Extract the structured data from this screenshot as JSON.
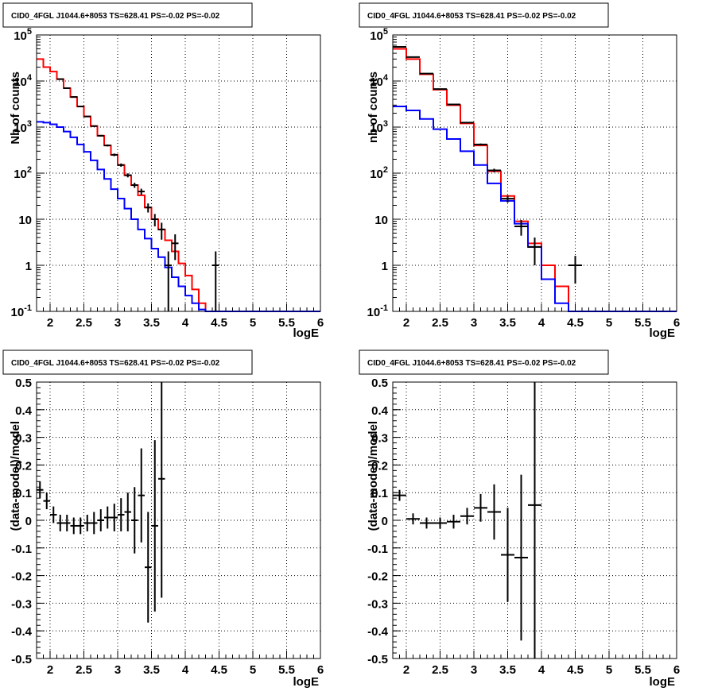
{
  "chart_data": [
    {
      "type": "line",
      "title": "CID0_4FGL J1044.6+8053 TS=628.41 PS=-0.02 PS=-0.02",
      "xlabel": "logE",
      "ylabel": "Nb of counts",
      "xlim": [
        1.8,
        6
      ],
      "ylim": [
        0.1,
        100000
      ],
      "yscale": "log",
      "grid": true,
      "x_ticks": [
        "2",
        "2.5",
        "3",
        "3.5",
        "4",
        "4.5",
        "5",
        "5.5",
        "6"
      ],
      "y_ticks": [
        "10^-1",
        "1",
        "10",
        "10^2",
        "10^3",
        "10^4",
        "10^5"
      ],
      "series": [
        {
          "color": "#ff0000",
          "style": "step",
          "bin_edges": [
            1.8,
            1.9,
            2.0,
            2.1,
            2.2,
            2.3,
            2.4,
            2.5,
            2.6,
            2.7,
            2.8,
            2.9,
            3.0,
            3.1,
            3.2,
            3.3,
            3.4,
            3.5,
            3.6,
            3.7,
            3.8,
            3.9,
            4.0,
            4.1,
            4.2,
            4.3,
            4.4,
            4.5,
            4.6,
            4.7,
            4.8,
            4.9,
            5.0,
            5.1,
            5.2,
            5.3,
            5.4,
            5.5,
            5.6,
            5.7,
            5.8,
            5.9,
            6.0
          ],
          "values": [
            30000,
            20000,
            16000,
            11000,
            7000,
            4500,
            2800,
            1700,
            1050,
            650,
            400,
            250,
            150,
            90,
            55,
            33,
            18,
            10,
            6,
            3.5,
            2,
            1.1,
            0.6,
            0.3,
            0.15,
            0.1,
            0.1,
            0.1,
            0.1,
            0.1,
            0.1,
            0.1,
            0.1,
            0.1,
            0.1,
            0.1,
            0.1,
            0.1,
            0.1,
            0.1,
            0.1,
            0.1
          ]
        },
        {
          "color": "#0000ff",
          "style": "step",
          "bin_edges": [
            1.8,
            1.9,
            2.0,
            2.1,
            2.2,
            2.3,
            2.4,
            2.5,
            2.6,
            2.7,
            2.8,
            2.9,
            3.0,
            3.1,
            3.2,
            3.3,
            3.4,
            3.5,
            3.6,
            3.7,
            3.8,
            3.9,
            4.0,
            4.1,
            4.2,
            4.3,
            4.4,
            4.5,
            4.6,
            4.7,
            4.8,
            4.9,
            5.0,
            5.1,
            5.2,
            5.3,
            5.4,
            5.5,
            5.6,
            5.7,
            5.8,
            5.9,
            6.0
          ],
          "values": [
            1300,
            1250,
            1150,
            1000,
            800,
            600,
            420,
            290,
            190,
            120,
            75,
            45,
            28,
            17,
            10,
            6,
            3.8,
            2.3,
            1.5,
            0.9,
            0.55,
            0.35,
            0.22,
            0.15,
            0.11,
            0.1,
            0.1,
            0.1,
            0.1,
            0.1,
            0.1,
            0.1,
            0.1,
            0.1,
            0.1,
            0.1,
            0.1,
            0.1,
            0.1,
            0.1,
            0.1,
            0.1
          ]
        }
      ],
      "points": {
        "color": "#000000",
        "x": [
          2.15,
          2.25,
          2.35,
          2.45,
          2.55,
          2.65,
          2.75,
          2.85,
          2.95,
          3.05,
          3.15,
          3.25,
          3.35,
          3.45,
          3.55,
          3.65,
          3.75,
          3.85,
          4.45
        ],
        "y": [
          11000,
          7000,
          4500,
          2800,
          1700,
          1050,
          650,
          400,
          250,
          150,
          90,
          55,
          40,
          18,
          10,
          6,
          1,
          3,
          1
        ],
        "yerr_low": [
          100,
          80,
          70,
          55,
          40,
          32,
          25,
          20,
          16,
          12,
          9,
          7,
          6,
          4,
          3,
          2.4,
          1,
          1.7,
          1
        ],
        "yerr_high": [
          100,
          80,
          70,
          55,
          40,
          32,
          25,
          20,
          16,
          12,
          9,
          7,
          6,
          4,
          3,
          2.4,
          1,
          1.7,
          1
        ]
      }
    },
    {
      "type": "line",
      "title": "CID0_4FGL J1044.6+8053 TS=628.41 PS=-0.02 PS=-0.02",
      "xlabel": "logE",
      "ylabel": "nb of counts",
      "xlim": [
        1.8,
        6
      ],
      "ylim": [
        0.1,
        100000
      ],
      "yscale": "log",
      "grid": true,
      "x_ticks": [
        "2",
        "2.5",
        "3",
        "3.5",
        "4",
        "4.5",
        "5",
        "5.5",
        "6"
      ],
      "y_ticks": [
        "10^-1",
        "1",
        "10",
        "10^2",
        "10^3",
        "10^4",
        "10^5"
      ],
      "series": [
        {
          "color": "#ff0000",
          "style": "step",
          "bin_edges": [
            1.8,
            2.0,
            2.2,
            2.4,
            2.6,
            2.8,
            3.0,
            3.2,
            3.4,
            3.6,
            3.8,
            4.0,
            4.2,
            4.4,
            4.6,
            4.8,
            5.0,
            5.2,
            5.4,
            5.6,
            5.8,
            6.0
          ],
          "values": [
            50000,
            30000,
            14000,
            6500,
            3000,
            1200,
            400,
            110,
            32,
            9,
            3,
            1,
            0.35,
            0.1,
            0.1,
            0.1,
            0.1,
            0.1,
            0.1,
            0.1,
            0.1
          ]
        },
        {
          "color": "#0000ff",
          "style": "step",
          "bin_edges": [
            1.8,
            2.0,
            2.2,
            2.4,
            2.6,
            2.8,
            3.0,
            3.2,
            3.4,
            3.6,
            3.8,
            4.0,
            4.2,
            4.4,
            4.6,
            4.8,
            5.0,
            5.2,
            5.4,
            5.6,
            5.8,
            6.0
          ],
          "values": [
            2800,
            2300,
            1500,
            900,
            550,
            300,
            150,
            60,
            25,
            8,
            2.5,
            0.5,
            0.15,
            0.1,
            0.1,
            0.1,
            0.1,
            0.1,
            0.1,
            0.1,
            0.1
          ]
        }
      ],
      "points": {
        "color": "#000000",
        "x": [
          1.9,
          2.1,
          2.3,
          2.5,
          2.7,
          2.9,
          3.1,
          3.3,
          3.5,
          3.7,
          3.9,
          4.5
        ],
        "y": [
          55000,
          33000,
          14500,
          6700,
          3100,
          1250,
          420,
          115,
          28,
          7,
          2.5,
          1
        ],
        "yerr_low": [
          230,
          180,
          120,
          80,
          55,
          35,
          20,
          10,
          5,
          2.6,
          1.5,
          0.6
        ],
        "yerr_high": [
          230,
          180,
          120,
          80,
          55,
          35,
          20,
          10,
          5,
          2.6,
          1.5,
          0.6
        ],
        "xerr": [
          0.1,
          0.1,
          0.1,
          0.1,
          0.1,
          0.1,
          0.1,
          0.1,
          0.1,
          0.1,
          0.1,
          0.1
        ]
      }
    },
    {
      "type": "scatter",
      "title": "CID0_4FGL J1044.6+8053 TS=628.41 PS=-0.02 PS=-0.02",
      "xlabel": "logE",
      "ylabel": "(data-model)/model",
      "xlim": [
        1.8,
        6
      ],
      "ylim": [
        -0.5,
        0.5
      ],
      "grid": true,
      "x_ticks": [
        "2",
        "2.5",
        "3",
        "3.5",
        "4",
        "4.5",
        "5",
        "5.5",
        "6"
      ],
      "y_ticks": [
        "-0.5",
        "-0.4",
        "-0.3",
        "-0.2",
        "-0.1",
        "0",
        "0.1",
        "0.2",
        "0.3",
        "0.4",
        "0.5"
      ],
      "points": {
        "color": "#000000",
        "x": [
          1.85,
          1.95,
          2.05,
          2.15,
          2.25,
          2.35,
          2.45,
          2.55,
          2.65,
          2.75,
          2.85,
          2.95,
          3.05,
          3.15,
          3.25,
          3.35,
          3.45,
          3.55,
          3.65
        ],
        "y": [
          0.11,
          0.07,
          0.02,
          -0.01,
          -0.01,
          -0.02,
          -0.02,
          -0.01,
          -0.01,
          0.0,
          0.01,
          0.01,
          0.02,
          0.03,
          0.0,
          0.09,
          -0.17,
          -0.02,
          0.15
        ],
        "yerr_low": [
          0.03,
          0.03,
          0.03,
          0.03,
          0.03,
          0.03,
          0.03,
          0.03,
          0.04,
          0.04,
          0.04,
          0.05,
          0.06,
          0.07,
          0.12,
          0.17,
          0.2,
          0.31,
          0.43
        ],
        "yerr_high": [
          0.03,
          0.03,
          0.03,
          0.03,
          0.03,
          0.03,
          0.03,
          0.03,
          0.04,
          0.04,
          0.04,
          0.05,
          0.06,
          0.07,
          0.12,
          0.17,
          0.2,
          0.31,
          0.43
        ],
        "xerr": [
          0.05,
          0.05,
          0.05,
          0.05,
          0.05,
          0.05,
          0.05,
          0.05,
          0.05,
          0.05,
          0.05,
          0.05,
          0.05,
          0.05,
          0.05,
          0.05,
          0.05,
          0.05,
          0.05
        ]
      }
    },
    {
      "type": "scatter",
      "title": "CID0_4FGL J1044.6+8053 TS=628.41 PS=-0.02 PS=-0.02",
      "xlabel": "logE",
      "ylabel": "(data-model)/model",
      "xlim": [
        1.8,
        6
      ],
      "ylim": [
        -0.5,
        0.5
      ],
      "grid": true,
      "x_ticks": [
        "2",
        "2.5",
        "3",
        "3.5",
        "4",
        "4.5",
        "5",
        "5.5",
        "6"
      ],
      "y_ticks": [
        "-0.5",
        "-0.4",
        "-0.3",
        "-0.2",
        "-0.1",
        "0",
        "0.1",
        "0.2",
        "0.3",
        "0.4",
        "0.5"
      ],
      "points": {
        "color": "#000000",
        "x": [
          1.9,
          2.1,
          2.3,
          2.5,
          2.7,
          2.9,
          3.1,
          3.3,
          3.5,
          3.7,
          3.9
        ],
        "y": [
          0.09,
          0.005,
          -0.01,
          -0.01,
          -0.005,
          0.015,
          0.045,
          0.03,
          -0.125,
          -0.135,
          0.055
        ],
        "yerr_low": [
          0.02,
          0.02,
          0.02,
          0.02,
          0.025,
          0.03,
          0.05,
          0.1,
          0.17,
          0.3,
          0.7
        ],
        "yerr_high": [
          0.02,
          0.02,
          0.02,
          0.02,
          0.025,
          0.03,
          0.05,
          0.1,
          0.17,
          0.3,
          0.7
        ],
        "xerr": [
          0.1,
          0.1,
          0.1,
          0.1,
          0.1,
          0.1,
          0.1,
          0.1,
          0.1,
          0.1,
          0.1
        ]
      }
    }
  ]
}
